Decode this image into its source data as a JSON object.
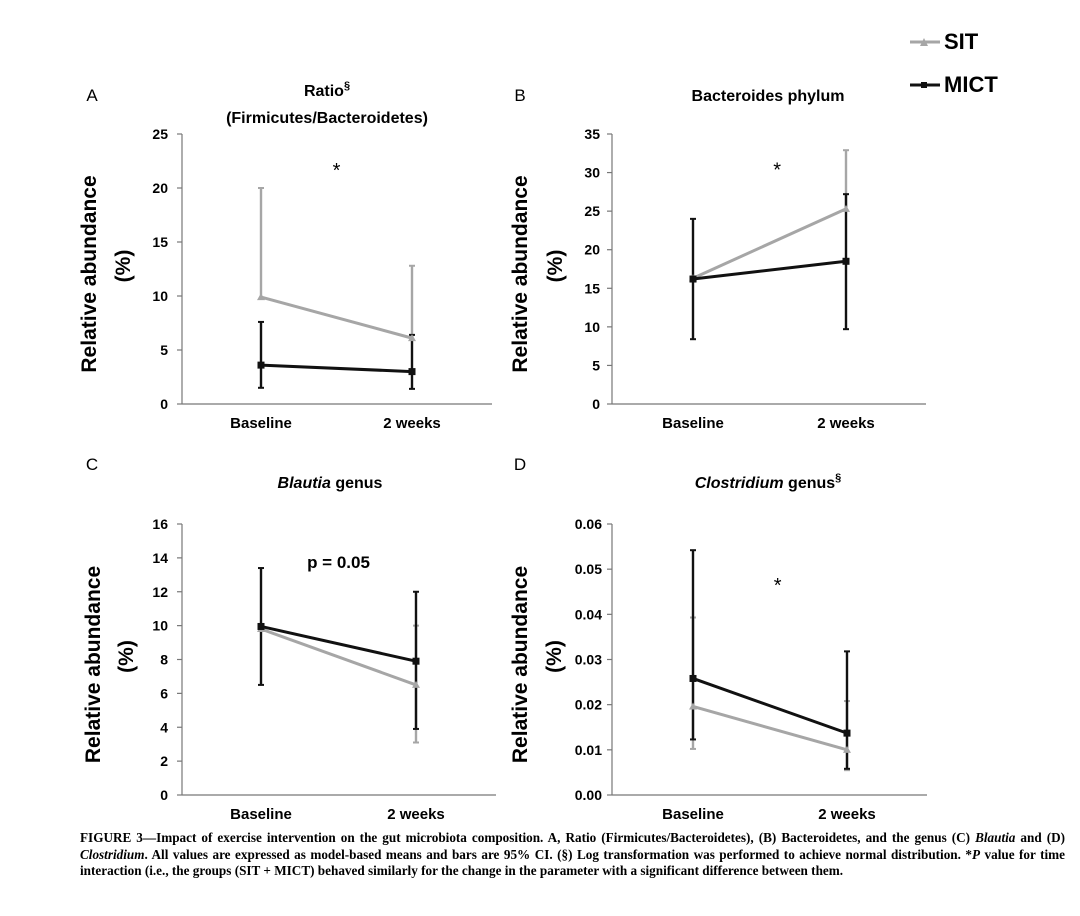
{
  "legend": {
    "sit": {
      "label": "SIT",
      "color": "#a6a6a6"
    },
    "mict": {
      "label": "MICT",
      "color": "#111111"
    }
  },
  "caption": {
    "lead": "FIGURE 3—Impact of exercise intervention on the gut microbiota composition. A, Ratio (Firmicutes/Bacteroidetes), (B) Bacteroidetes, and the genus (C) ",
    "genus1": "Blautia",
    "mid": " and (D) ",
    "genus2": "Clostridium",
    "rest1": ". All values are expressed as model-based means and bars are 95% CI. (§) Log transformation was performed to achieve normal distribution. *",
    "p": "P",
    "rest2": " value for time interaction (i.e., the groups (SIT + MICT) behaved similarly for the change in the parameter with a significant difference between them."
  },
  "chart_data": [
    {
      "panel": "A",
      "type": "line",
      "title_lines": [
        {
          "text": "Ratio",
          "sup": "§",
          "italic": ""
        },
        {
          "text": "(Firmicutes/Bacteroidetes)",
          "sup": "",
          "italic": ""
        }
      ],
      "ylabel_lines": [
        "Relative abundance",
        "(%)"
      ],
      "categories": [
        "Baseline",
        "2 weeks"
      ],
      "ylim": [
        0,
        25
      ],
      "yticks": [
        "0",
        "5",
        "10",
        "15",
        "20",
        "25"
      ],
      "annotation": "*",
      "annotation_at": [
        1.5,
        21
      ],
      "series": [
        {
          "name": "SIT",
          "values": [
            9.9,
            6.1
          ],
          "ci_low": [
            null,
            null
          ],
          "ci_high": [
            20.0,
            12.8
          ]
        },
        {
          "name": "MICT",
          "values": [
            3.6,
            3.0
          ],
          "ci_low": [
            1.5,
            1.4
          ],
          "ci_high": [
            7.6,
            6.4
          ]
        }
      ]
    },
    {
      "panel": "B",
      "type": "line",
      "title_lines": [
        {
          "text": "Bacteroides phylum",
          "sup": "",
          "italic": ""
        }
      ],
      "ylabel_lines": [
        "Relative abundance",
        "(%)"
      ],
      "categories": [
        "Baseline",
        "2 weeks"
      ],
      "ylim": [
        0,
        35
      ],
      "yticks": [
        "0",
        "5",
        "10",
        "15",
        "20",
        "25",
        "30",
        "35"
      ],
      "annotation": "*",
      "annotation_at": [
        1.55,
        29.5
      ],
      "series": [
        {
          "name": "SIT",
          "values": [
            16.3,
            25.3
          ],
          "ci_low": [
            null,
            null
          ],
          "ci_high": [
            null,
            32.9
          ]
        },
        {
          "name": "MICT",
          "values": [
            16.2,
            18.5
          ],
          "ci_low": [
            8.4,
            9.7
          ],
          "ci_high": [
            24.0,
            27.2
          ]
        }
      ]
    },
    {
      "panel": "C",
      "type": "line",
      "title_lines": [
        {
          "text": " genus",
          "sup": "",
          "italic": "Blautia"
        }
      ],
      "ylabel_lines": [
        "Relative abundance",
        "(%)"
      ],
      "categories": [
        "Baseline",
        "2 weeks"
      ],
      "ylim": [
        0,
        16
      ],
      "yticks": [
        "0",
        "2",
        "4",
        "6",
        "8",
        "10",
        "12",
        "14",
        "16"
      ],
      "annotation": "p = 0.05",
      "annotation_at": [
        1.5,
        13.4
      ],
      "series": [
        {
          "name": "SIT",
          "values": [
            9.8,
            6.5
          ],
          "ci_low": [
            null,
            3.1
          ],
          "ci_high": [
            null,
            10.0
          ]
        },
        {
          "name": "MICT",
          "values": [
            9.95,
            7.9
          ],
          "ci_low": [
            6.5,
            3.9
          ],
          "ci_high": [
            13.4,
            12.0
          ]
        }
      ]
    },
    {
      "panel": "D",
      "type": "line",
      "title_lines": [
        {
          "text": " genus",
          "sup": "§",
          "italic": "Clostridium"
        }
      ],
      "ylabel_lines": [
        "Relative abundance",
        "(%)"
      ],
      "categories": [
        "Baseline",
        "2 weeks"
      ],
      "ylim": [
        0,
        0.06
      ],
      "yticks": [
        "0.00",
        "0.01",
        "0.02",
        "0.03",
        "0.04",
        "0.05",
        "0.06"
      ],
      "annotation": "*",
      "annotation_at": [
        1.55,
        0.045
      ],
      "series": [
        {
          "name": "SIT",
          "values": [
            0.0196,
            0.01
          ],
          "ci_low": [
            0.0102,
            0.0055
          ],
          "ci_high": [
            0.0393,
            0.0208
          ]
        },
        {
          "name": "MICT",
          "values": [
            0.0258,
            0.0137
          ],
          "ci_low": [
            0.0123,
            0.0058
          ],
          "ci_high": [
            0.0542,
            0.0318
          ]
        }
      ]
    }
  ]
}
